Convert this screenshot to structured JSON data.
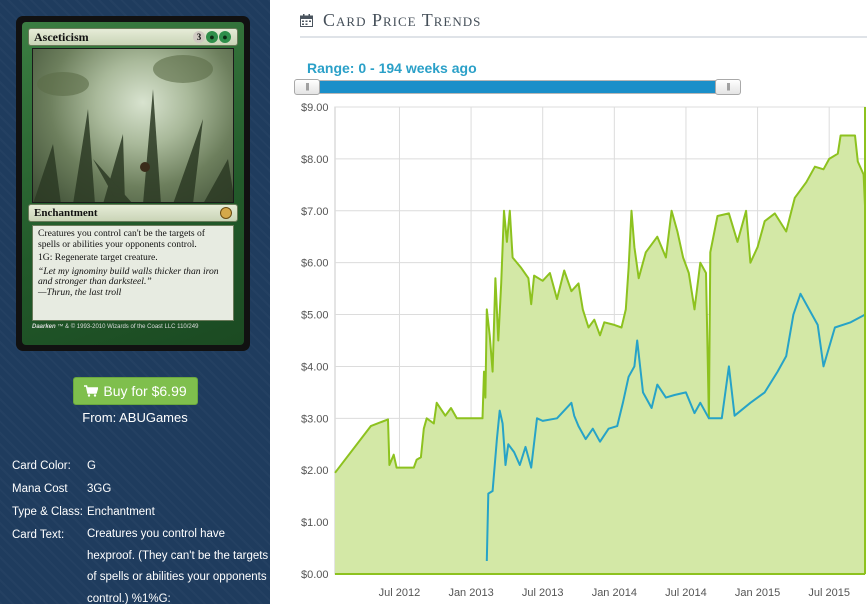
{
  "card": {
    "name": "Asceticism",
    "mana": [
      "3",
      "G",
      "G"
    ],
    "type_line": "Enchantment",
    "rules_text_1": "Creatures you control can't be the targets of spells or abilities your opponents control.",
    "rules_text_2": "1G: Regenerate target creature.",
    "flavor_1": "“Let my ignominy build walls thicker than iron and stronger than darksteel.”",
    "flavor_2": "—Thrun, the last troll",
    "artist": "Daarken",
    "copyright": "™ & © 1993-2010 Wizards of the Coast LLC 110/249"
  },
  "buy": {
    "label": "Buy for $6.99",
    "icon": "shopping-cart-icon",
    "from": "From: ABUGames",
    "color": "#7fbf4d"
  },
  "details": [
    {
      "label": "Card Color:",
      "value": "G"
    },
    {
      "label": "Mana Cost",
      "value": "3GG"
    },
    {
      "label": "Type & Class:",
      "value": "Enchantment"
    },
    {
      "label": "Card Text:",
      "value": "Creatures you control have hexproof. (They can't be the targets of spells or abilities your opponents control.) %1%G:"
    }
  ],
  "trends": {
    "title": "Card Price Trends",
    "icon": "calendar-icon",
    "range_label": "Range: 0 - 194 weeks ago"
  },
  "slider": {
    "min": 0,
    "max": 194,
    "low": 0,
    "high": 194,
    "accent": "#1a8fc9"
  },
  "chart_data": {
    "type": "line",
    "x_ticks": [
      "Jul 2012",
      "Jan 2013",
      "Jul 2013",
      "Jan 2014",
      "Jul 2014",
      "Jan 2015",
      "Jul 2015"
    ],
    "y_ticks": [
      "$0.00",
      "$1.00",
      "$2.00",
      "$3.00",
      "$4.00",
      "$5.00",
      "$6.00",
      "$7.00",
      "$8.00",
      "$9.00"
    ],
    "ylim": [
      0,
      9
    ],
    "xlim": [
      2012.05,
      2015.75
    ],
    "grid": true,
    "series": [
      {
        "color": "#8dc21f",
        "fill": "#d3e8a6",
        "points": [
          [
            2012.05,
            1.95
          ],
          [
            2012.3,
            2.85
          ],
          [
            2012.42,
            2.98
          ],
          [
            2012.43,
            2.1
          ],
          [
            2012.46,
            2.3
          ],
          [
            2012.48,
            2.05
          ],
          [
            2012.6,
            2.05
          ],
          [
            2012.62,
            2.2
          ],
          [
            2012.65,
            2.25
          ],
          [
            2012.67,
            2.8
          ],
          [
            2012.69,
            3.0
          ],
          [
            2012.74,
            2.9
          ],
          [
            2012.76,
            3.3
          ],
          [
            2012.82,
            3.05
          ],
          [
            2012.86,
            3.2
          ],
          [
            2012.9,
            3.0
          ],
          [
            2013.08,
            3.0
          ],
          [
            2013.09,
            3.9
          ],
          [
            2013.1,
            3.4
          ],
          [
            2013.11,
            5.1
          ],
          [
            2013.13,
            4.6
          ],
          [
            2013.15,
            3.9
          ],
          [
            2013.17,
            5.7
          ],
          [
            2013.19,
            4.5
          ],
          [
            2013.21,
            5.6
          ],
          [
            2013.23,
            7.0
          ],
          [
            2013.25,
            6.4
          ],
          [
            2013.27,
            7.0
          ],
          [
            2013.29,
            6.1
          ],
          [
            2013.35,
            5.9
          ],
          [
            2013.4,
            5.7
          ],
          [
            2013.42,
            5.2
          ],
          [
            2013.44,
            5.75
          ],
          [
            2013.5,
            5.65
          ],
          [
            2013.55,
            5.8
          ],
          [
            2013.6,
            5.3
          ],
          [
            2013.65,
            5.85
          ],
          [
            2013.7,
            5.45
          ],
          [
            2013.75,
            5.6
          ],
          [
            2013.78,
            5.1
          ],
          [
            2013.82,
            4.75
          ],
          [
            2013.86,
            4.9
          ],
          [
            2013.9,
            4.6
          ],
          [
            2013.93,
            4.85
          ],
          [
            2014.0,
            4.8
          ],
          [
            2014.05,
            4.75
          ],
          [
            2014.08,
            5.1
          ],
          [
            2014.1,
            5.9
          ],
          [
            2014.12,
            7.0
          ],
          [
            2014.14,
            6.3
          ],
          [
            2014.17,
            5.7
          ],
          [
            2014.22,
            6.2
          ],
          [
            2014.3,
            6.5
          ],
          [
            2014.36,
            6.1
          ],
          [
            2014.4,
            7.0
          ],
          [
            2014.44,
            6.6
          ],
          [
            2014.48,
            6.1
          ],
          [
            2014.52,
            5.8
          ],
          [
            2014.56,
            5.1
          ],
          [
            2014.6,
            6.0
          ],
          [
            2014.64,
            5.8
          ],
          [
            2014.66,
            3.0
          ],
          [
            2014.67,
            6.2
          ],
          [
            2014.72,
            6.9
          ],
          [
            2014.8,
            6.95
          ],
          [
            2014.86,
            6.4
          ],
          [
            2014.92,
            7.0
          ],
          [
            2014.95,
            6.0
          ],
          [
            2015.0,
            6.3
          ],
          [
            2015.05,
            6.8
          ],
          [
            2015.12,
            6.95
          ],
          [
            2015.2,
            6.6
          ],
          [
            2015.26,
            7.25
          ],
          [
            2015.34,
            7.55
          ],
          [
            2015.4,
            7.85
          ],
          [
            2015.46,
            7.8
          ],
          [
            2015.5,
            8.0
          ],
          [
            2015.56,
            8.1
          ],
          [
            2015.58,
            8.45
          ],
          [
            2015.68,
            8.45
          ],
          [
            2015.7,
            7.95
          ],
          [
            2015.74,
            7.7
          ],
          [
            2015.75,
            7.1
          ]
        ]
      },
      {
        "color": "#27a3c7",
        "points": [
          [
            2013.11,
            0.25
          ],
          [
            2013.12,
            1.55
          ],
          [
            2013.15,
            1.6
          ],
          [
            2013.18,
            2.6
          ],
          [
            2013.2,
            3.15
          ],
          [
            2013.22,
            2.9
          ],
          [
            2013.24,
            2.1
          ],
          [
            2013.26,
            2.5
          ],
          [
            2013.3,
            2.35
          ],
          [
            2013.34,
            2.1
          ],
          [
            2013.38,
            2.45
          ],
          [
            2013.42,
            2.05
          ],
          [
            2013.46,
            3.0
          ],
          [
            2013.5,
            2.95
          ],
          [
            2013.6,
            3.0
          ],
          [
            2013.7,
            3.3
          ],
          [
            2013.72,
            3.05
          ],
          [
            2013.75,
            2.85
          ],
          [
            2013.8,
            2.6
          ],
          [
            2013.85,
            2.8
          ],
          [
            2013.9,
            2.55
          ],
          [
            2013.96,
            2.8
          ],
          [
            2014.02,
            2.85
          ],
          [
            2014.06,
            3.3
          ],
          [
            2014.1,
            3.8
          ],
          [
            2014.14,
            4.0
          ],
          [
            2014.16,
            4.5
          ],
          [
            2014.2,
            3.5
          ],
          [
            2014.26,
            3.2
          ],
          [
            2014.3,
            3.65
          ],
          [
            2014.36,
            3.4
          ],
          [
            2014.42,
            3.45
          ],
          [
            2014.5,
            3.5
          ],
          [
            2014.56,
            3.1
          ],
          [
            2014.6,
            3.3
          ],
          [
            2014.66,
            3.0
          ],
          [
            2014.75,
            3.0
          ],
          [
            2014.8,
            4.0
          ],
          [
            2014.84,
            3.05
          ],
          [
            2014.95,
            3.3
          ],
          [
            2015.05,
            3.5
          ],
          [
            2015.14,
            3.9
          ],
          [
            2015.2,
            4.2
          ],
          [
            2015.25,
            5.0
          ],
          [
            2015.3,
            5.4
          ],
          [
            2015.36,
            5.1
          ],
          [
            2015.42,
            4.8
          ],
          [
            2015.46,
            4.0
          ],
          [
            2015.54,
            4.75
          ],
          [
            2015.65,
            4.85
          ],
          [
            2015.75,
            5.0
          ]
        ]
      }
    ]
  }
}
